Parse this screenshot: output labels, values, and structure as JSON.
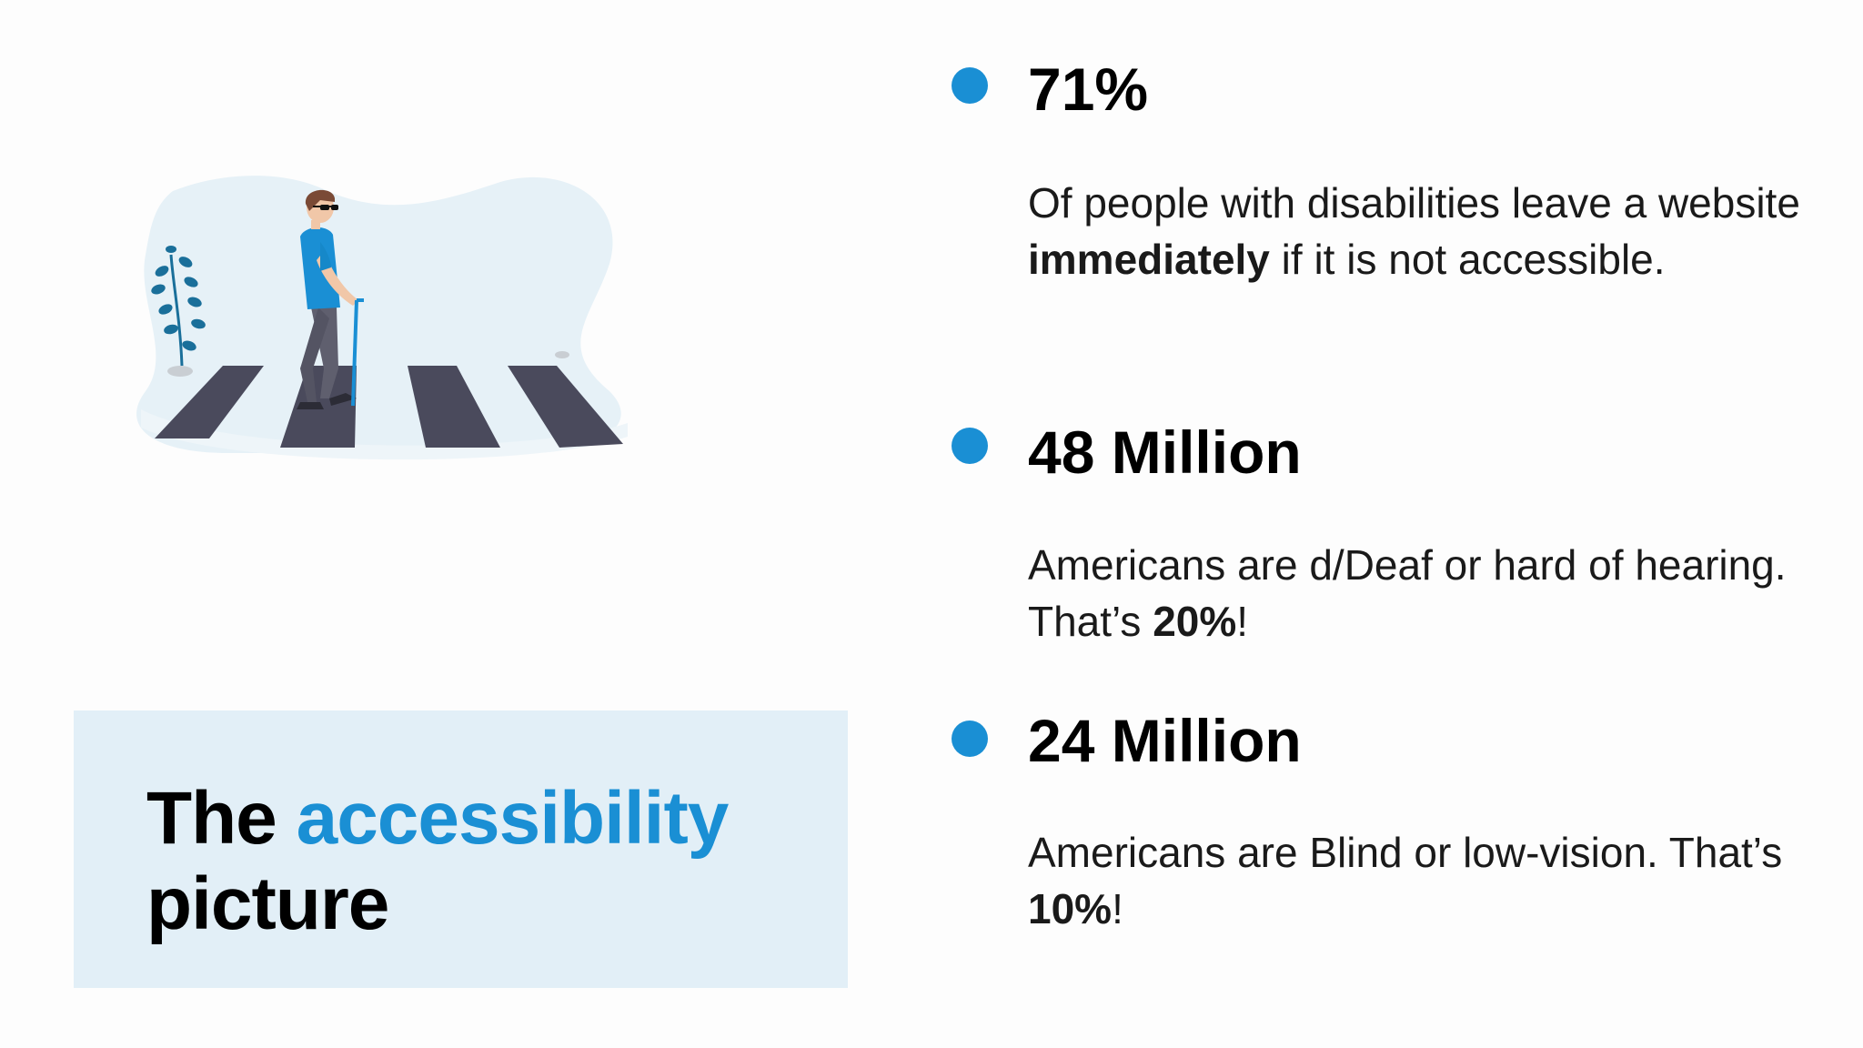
{
  "slide": {
    "title_part1": "The",
    "title_accent": "accessibility",
    "title_part2": "picture",
    "accent_color": "#1a8fd4",
    "title_box_color": "#e2eff7"
  },
  "illustration": {
    "icon": "person-with-white-cane-crossing-street-icon"
  },
  "stats": [
    {
      "value": "71%",
      "desc_before": "Of people with disabilities leave a website ",
      "desc_bold": "immediately",
      "desc_after": " if it is not accessible."
    },
    {
      "value": "48 Million",
      "desc_before": "Americans are d/Deaf or hard of hearing. That’s ",
      "desc_bold": "20%",
      "desc_after": "!"
    },
    {
      "value": "24 Million",
      "desc_before": "Americans are Blind or low-vision. That’s ",
      "desc_bold": "10%",
      "desc_after": "!"
    }
  ]
}
